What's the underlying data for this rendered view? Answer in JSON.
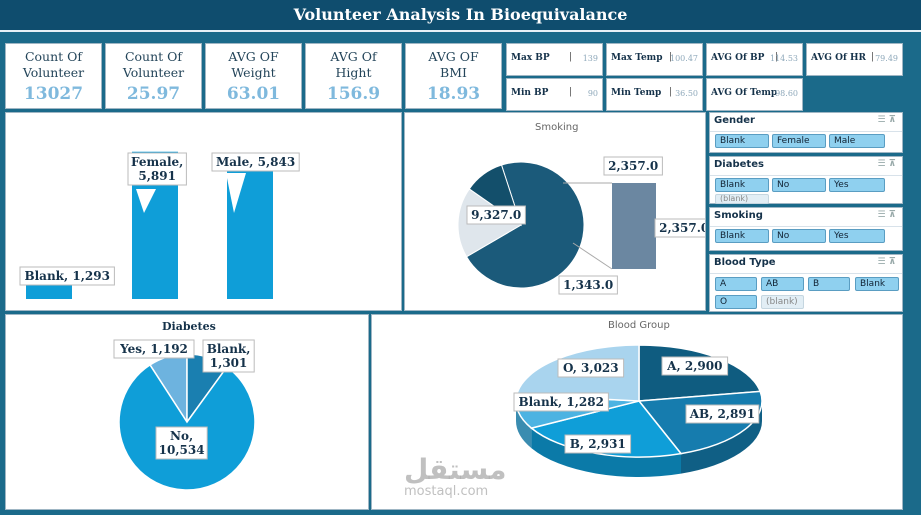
{
  "title": "Volunteer Analysis In Bioequivalance",
  "kpis": [
    {
      "label": "Count Of Volunteer",
      "value": "13027"
    },
    {
      "label": "Count Of Volunteer",
      "value": "25.97"
    },
    {
      "label": "AVG OF Weight",
      "value": "63.01"
    },
    {
      "label": "AVG Of Hight",
      "value": "156.9"
    },
    {
      "label": "AVG OF BMI",
      "value": "18.93"
    }
  ],
  "mini": {
    "max_bp": {
      "label": "Max BP",
      "value": "139"
    },
    "min_bp": {
      "label": "Min BP",
      "value": "90"
    },
    "max_temp": {
      "label": "Max Temp",
      "value": "100.47"
    },
    "min_temp": {
      "label": "Min Temp",
      "value": "36.50"
    },
    "avg_bp": {
      "label": "AVG Of BP",
      "value": "114.53"
    },
    "avg_hr": {
      "label": "AVG Of HR",
      "value": "79.49"
    },
    "avg_temp": {
      "label": "AVG Of Temp",
      "value": "98.60"
    }
  },
  "chart_data": [
    {
      "type": "bar",
      "title": "",
      "categories": [
        "Blank",
        "Female",
        "Male"
      ],
      "values": [
        1293,
        5891,
        5843
      ],
      "labels": [
        "Blank, 1,293",
        "Female, 5,891",
        "Male, 5,843"
      ]
    },
    {
      "type": "pie",
      "title": "Smoking",
      "values": [
        9327,
        2357,
        1343
      ],
      "labels": [
        "9,327.0",
        "2,357.0",
        "1,343.0"
      ],
      "bar_of_pie": {
        "values": [
          2357
        ],
        "labels": [
          "2,357.0"
        ]
      }
    },
    {
      "type": "pie",
      "title": "Diabetes",
      "categories": [
        "No",
        "Yes",
        "Blank"
      ],
      "values": [
        10534,
        1192,
        1301
      ],
      "labels": [
        "No, 10,534",
        "Yes, 1,192",
        "Blank, 1,301"
      ]
    },
    {
      "type": "pie",
      "title": "Blood Group",
      "categories": [
        "A",
        "AB",
        "B",
        "Blank",
        "O"
      ],
      "values": [
        2900,
        2891,
        2931,
        1282,
        3023
      ],
      "labels": [
        "A, 2,900",
        "AB, 2,891",
        "B, 2,931",
        "Blank, 1,282",
        "O, 3,023"
      ]
    }
  ],
  "slicers": {
    "gender": {
      "title": "Gender",
      "items": [
        "Blank",
        "Female",
        "Male"
      ]
    },
    "diabetes": {
      "title": "Diabetes",
      "items": [
        "Blank",
        "No",
        "Yes"
      ],
      "extra": "(blank)"
    },
    "smoking": {
      "title": "Smoking",
      "items": [
        "Blank",
        "No",
        "Yes"
      ]
    },
    "blood": {
      "title": "Blood Type",
      "items": [
        "A",
        "AB",
        "B",
        "Blank",
        "O"
      ],
      "extra": "(blank)"
    }
  },
  "watermark": {
    "ar": "مستقل",
    "en": "mostaql.com"
  },
  "colors": {
    "dark": "#0f4d6e",
    "mid": "#1a7fb0",
    "light": "#0f9ed8",
    "pale": "#7fb9dd"
  }
}
